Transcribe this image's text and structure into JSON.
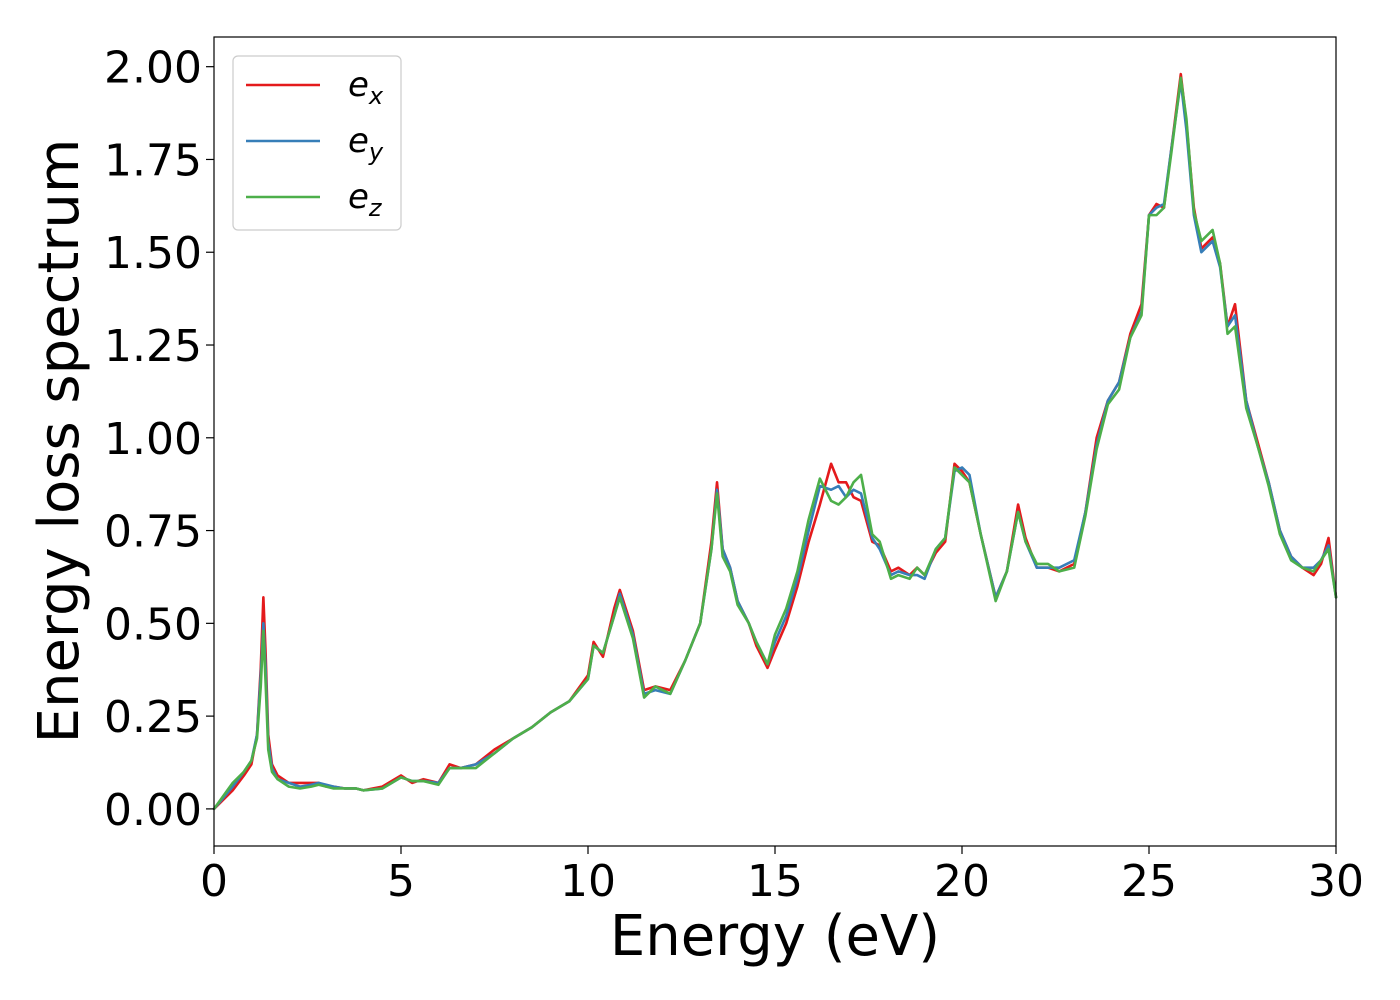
{
  "chart_data": {
    "type": "line",
    "title": "",
    "xlabel": "Energy (eV)",
    "ylabel": "Energy loss spectrum",
    "xlim": [
      0,
      30
    ],
    "ylim": [
      -0.1,
      2.08
    ],
    "xticks": [
      0,
      5,
      10,
      15,
      20,
      25,
      30
    ],
    "xtick_labels": [
      "0",
      "5",
      "10",
      "15",
      "20",
      "25",
      "30"
    ],
    "yticks": [
      0.0,
      0.25,
      0.5,
      0.75,
      1.0,
      1.25,
      1.5,
      1.75,
      2.0
    ],
    "ytick_labels": [
      "0.00",
      "0.25",
      "0.50",
      "0.75",
      "1.00",
      "1.25",
      "1.50",
      "1.75",
      "2.00"
    ],
    "grid": false,
    "legend_position": "top-left",
    "series": [
      {
        "name": "e_x",
        "label_base": "e",
        "label_sub": "x",
        "color": "#e41a1c",
        "x": [
          0,
          0.5,
          0.8,
          1.0,
          1.15,
          1.25,
          1.32,
          1.38,
          1.45,
          1.55,
          1.7,
          2.0,
          2.3,
          2.6,
          2.8,
          3.0,
          3.2,
          3.5,
          3.8,
          4.0,
          4.5,
          5.0,
          5.3,
          5.6,
          6.0,
          6.3,
          6.6,
          7.0,
          7.5,
          8.0,
          8.5,
          9.0,
          9.5,
          10.0,
          10.15,
          10.4,
          10.7,
          10.85,
          11.2,
          11.5,
          11.8,
          12.2,
          12.6,
          13.0,
          13.3,
          13.45,
          13.6,
          13.8,
          14.0,
          14.3,
          14.5,
          14.8,
          15.0,
          15.3,
          15.6,
          15.9,
          16.2,
          16.5,
          16.7,
          16.9,
          17.1,
          17.3,
          17.6,
          17.8,
          18.1,
          18.3,
          18.6,
          18.8,
          19.0,
          19.3,
          19.55,
          19.8,
          20.0,
          20.2,
          20.5,
          20.9,
          21.2,
          21.5,
          21.7,
          22.0,
          22.3,
          22.6,
          23.0,
          23.3,
          23.6,
          23.9,
          24.2,
          24.5,
          24.8,
          25.0,
          25.2,
          25.4,
          25.6,
          25.85,
          26.0,
          26.2,
          26.4,
          26.7,
          26.9,
          27.1,
          27.3,
          27.6,
          27.9,
          28.2,
          28.5,
          28.8,
          29.1,
          29.4,
          29.6,
          29.8,
          30.0
        ],
        "y": [
          0.0,
          0.05,
          0.09,
          0.12,
          0.2,
          0.38,
          0.57,
          0.42,
          0.2,
          0.12,
          0.09,
          0.07,
          0.07,
          0.07,
          0.07,
          0.06,
          0.06,
          0.055,
          0.055,
          0.05,
          0.06,
          0.09,
          0.07,
          0.08,
          0.07,
          0.12,
          0.11,
          0.12,
          0.16,
          0.19,
          0.22,
          0.26,
          0.29,
          0.36,
          0.45,
          0.41,
          0.54,
          0.59,
          0.48,
          0.32,
          0.33,
          0.32,
          0.4,
          0.5,
          0.72,
          0.88,
          0.7,
          0.65,
          0.56,
          0.5,
          0.44,
          0.38,
          0.43,
          0.5,
          0.6,
          0.72,
          0.82,
          0.93,
          0.88,
          0.88,
          0.84,
          0.83,
          0.72,
          0.71,
          0.64,
          0.65,
          0.63,
          0.65,
          0.63,
          0.69,
          0.72,
          0.93,
          0.91,
          0.88,
          0.74,
          0.57,
          0.64,
          0.82,
          0.73,
          0.65,
          0.65,
          0.64,
          0.66,
          0.8,
          1.0,
          1.1,
          1.15,
          1.28,
          1.36,
          1.6,
          1.63,
          1.62,
          1.78,
          1.98,
          1.85,
          1.62,
          1.51,
          1.54,
          1.47,
          1.3,
          1.36,
          1.1,
          0.99,
          0.88,
          0.75,
          0.68,
          0.65,
          0.63,
          0.66,
          0.73,
          0.57
        ]
      },
      {
        "name": "e_y",
        "label_base": "e",
        "label_sub": "y",
        "color": "#377eb8",
        "x": [
          0,
          0.5,
          0.8,
          1.0,
          1.15,
          1.25,
          1.32,
          1.38,
          1.45,
          1.55,
          1.7,
          2.0,
          2.3,
          2.6,
          2.8,
          3.0,
          3.2,
          3.5,
          3.8,
          4.0,
          4.5,
          5.0,
          5.3,
          5.6,
          6.0,
          6.3,
          6.6,
          7.0,
          7.5,
          8.0,
          8.5,
          9.0,
          9.5,
          10.0,
          10.15,
          10.4,
          10.7,
          10.85,
          11.2,
          11.5,
          11.8,
          12.2,
          12.6,
          13.0,
          13.3,
          13.45,
          13.6,
          13.8,
          14.0,
          14.3,
          14.5,
          14.8,
          15.0,
          15.3,
          15.6,
          15.9,
          16.2,
          16.5,
          16.7,
          16.9,
          17.1,
          17.3,
          17.6,
          17.8,
          18.1,
          18.3,
          18.6,
          18.8,
          19.0,
          19.3,
          19.55,
          19.8,
          20.0,
          20.2,
          20.5,
          20.9,
          21.2,
          21.5,
          21.7,
          22.0,
          22.3,
          22.6,
          23.0,
          23.3,
          23.6,
          23.9,
          24.2,
          24.5,
          24.8,
          25.0,
          25.2,
          25.4,
          25.6,
          25.85,
          26.0,
          26.2,
          26.4,
          26.7,
          26.9,
          27.1,
          27.3,
          27.6,
          27.9,
          28.2,
          28.5,
          28.8,
          29.1,
          29.4,
          29.6,
          29.8,
          30.0
        ],
        "y": [
          0.0,
          0.06,
          0.1,
          0.13,
          0.2,
          0.36,
          0.5,
          0.38,
          0.18,
          0.11,
          0.08,
          0.07,
          0.06,
          0.065,
          0.07,
          0.065,
          0.06,
          0.055,
          0.055,
          0.05,
          0.055,
          0.085,
          0.075,
          0.075,
          0.07,
          0.11,
          0.11,
          0.12,
          0.15,
          0.19,
          0.22,
          0.26,
          0.29,
          0.35,
          0.44,
          0.42,
          0.52,
          0.58,
          0.47,
          0.31,
          0.32,
          0.31,
          0.4,
          0.5,
          0.7,
          0.86,
          0.7,
          0.65,
          0.56,
          0.5,
          0.45,
          0.39,
          0.45,
          0.52,
          0.62,
          0.75,
          0.87,
          0.86,
          0.87,
          0.84,
          0.86,
          0.85,
          0.73,
          0.7,
          0.63,
          0.64,
          0.63,
          0.63,
          0.62,
          0.7,
          0.73,
          0.91,
          0.92,
          0.9,
          0.74,
          0.57,
          0.64,
          0.8,
          0.72,
          0.65,
          0.65,
          0.65,
          0.67,
          0.8,
          0.98,
          1.1,
          1.15,
          1.27,
          1.34,
          1.6,
          1.62,
          1.63,
          1.78,
          1.96,
          1.83,
          1.6,
          1.5,
          1.53,
          1.46,
          1.3,
          1.33,
          1.1,
          0.98,
          0.88,
          0.75,
          0.68,
          0.65,
          0.65,
          0.67,
          0.71,
          0.57
        ]
      },
      {
        "name": "e_z",
        "label_base": "e",
        "label_sub": "z",
        "color": "#4daf4a",
        "x": [
          0,
          0.5,
          0.8,
          1.0,
          1.15,
          1.25,
          1.32,
          1.38,
          1.45,
          1.55,
          1.7,
          2.0,
          2.3,
          2.6,
          2.8,
          3.0,
          3.2,
          3.5,
          3.8,
          4.0,
          4.5,
          5.0,
          5.3,
          5.6,
          6.0,
          6.3,
          6.6,
          7.0,
          7.5,
          8.0,
          8.5,
          9.0,
          9.5,
          10.0,
          10.15,
          10.4,
          10.7,
          10.85,
          11.2,
          11.5,
          11.8,
          12.2,
          12.6,
          13.0,
          13.3,
          13.45,
          13.6,
          13.8,
          14.0,
          14.3,
          14.5,
          14.8,
          15.0,
          15.3,
          15.6,
          15.9,
          16.2,
          16.5,
          16.7,
          16.9,
          17.1,
          17.3,
          17.6,
          17.8,
          18.1,
          18.3,
          18.6,
          18.8,
          19.0,
          19.3,
          19.55,
          19.8,
          20.0,
          20.2,
          20.5,
          20.9,
          21.2,
          21.5,
          21.7,
          22.0,
          22.3,
          22.6,
          23.0,
          23.3,
          23.6,
          23.9,
          24.2,
          24.5,
          24.8,
          25.0,
          25.2,
          25.4,
          25.6,
          25.85,
          26.0,
          26.2,
          26.4,
          26.7,
          26.9,
          27.1,
          27.3,
          27.6,
          27.9,
          28.2,
          28.5,
          28.8,
          29.1,
          29.4,
          29.6,
          29.8,
          30.0
        ],
        "y": [
          0.0,
          0.07,
          0.1,
          0.13,
          0.19,
          0.33,
          0.48,
          0.34,
          0.16,
          0.1,
          0.08,
          0.06,
          0.055,
          0.06,
          0.065,
          0.06,
          0.055,
          0.055,
          0.055,
          0.05,
          0.055,
          0.085,
          0.075,
          0.075,
          0.065,
          0.11,
          0.11,
          0.11,
          0.15,
          0.19,
          0.22,
          0.26,
          0.29,
          0.35,
          0.44,
          0.42,
          0.52,
          0.57,
          0.46,
          0.3,
          0.33,
          0.31,
          0.4,
          0.5,
          0.7,
          0.85,
          0.68,
          0.64,
          0.55,
          0.5,
          0.45,
          0.39,
          0.47,
          0.54,
          0.64,
          0.78,
          0.89,
          0.83,
          0.82,
          0.84,
          0.88,
          0.9,
          0.74,
          0.72,
          0.62,
          0.63,
          0.62,
          0.65,
          0.63,
          0.7,
          0.73,
          0.92,
          0.9,
          0.88,
          0.74,
          0.56,
          0.64,
          0.8,
          0.72,
          0.66,
          0.66,
          0.64,
          0.65,
          0.79,
          0.97,
          1.09,
          1.13,
          1.27,
          1.33,
          1.6,
          1.6,
          1.62,
          1.77,
          1.97,
          1.86,
          1.61,
          1.53,
          1.56,
          1.47,
          1.28,
          1.3,
          1.08,
          0.98,
          0.87,
          0.74,
          0.67,
          0.65,
          0.64,
          0.67,
          0.7,
          0.57
        ]
      }
    ]
  }
}
